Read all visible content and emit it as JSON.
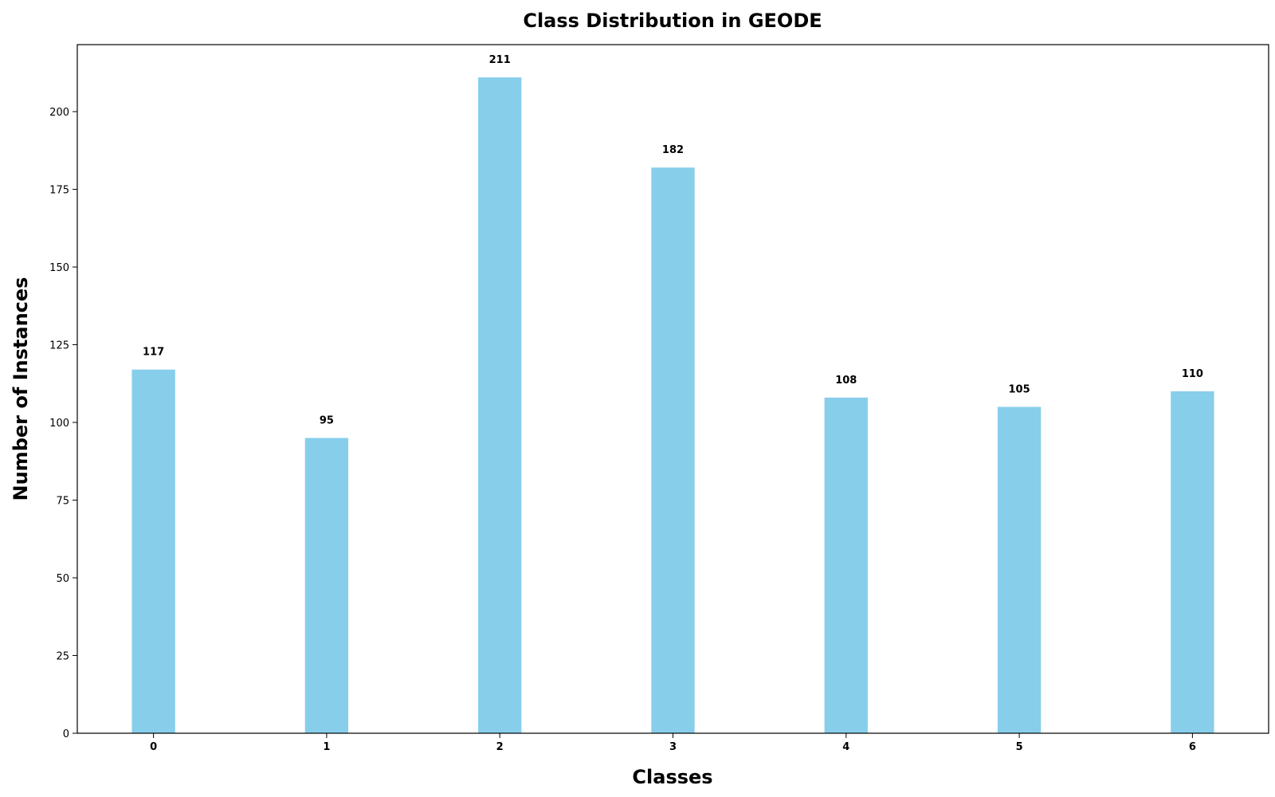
{
  "chart_data": {
    "type": "bar",
    "title": "Class Distribution in GEODE",
    "xlabel": "Classes",
    "ylabel": "Number of Instances",
    "categories": [
      "0",
      "1",
      "2",
      "3",
      "4",
      "5",
      "6"
    ],
    "values": [
      117,
      95,
      211,
      182,
      108,
      105,
      110
    ],
    "ylim": [
      0,
      221.55
    ],
    "yticks": [
      0,
      25,
      50,
      75,
      100,
      125,
      150,
      175,
      200
    ],
    "bar_color": "#87CEEB",
    "grid": false,
    "legend": "none"
  }
}
